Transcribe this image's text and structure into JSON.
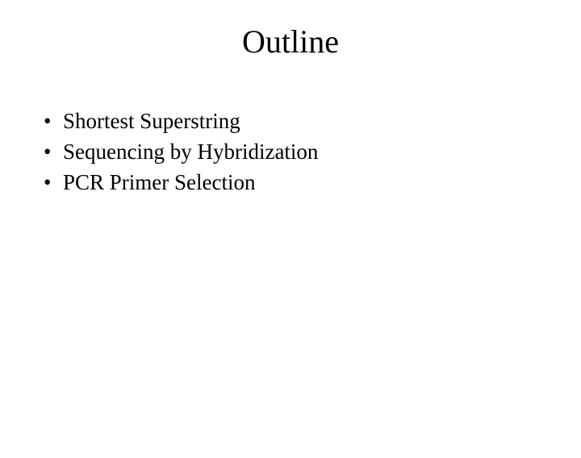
{
  "slide": {
    "title": "Outline",
    "bullets": [
      "Shortest Superstring",
      "Sequencing by Hybridization",
      "PCR Primer Selection"
    ],
    "styling": {
      "background_color": "#ffffff",
      "text_color": "#000000",
      "font_family": "Times New Roman",
      "title_fontsize": 40,
      "body_fontsize": 27,
      "title_align": "center",
      "bullet_glyph": "•"
    }
  }
}
